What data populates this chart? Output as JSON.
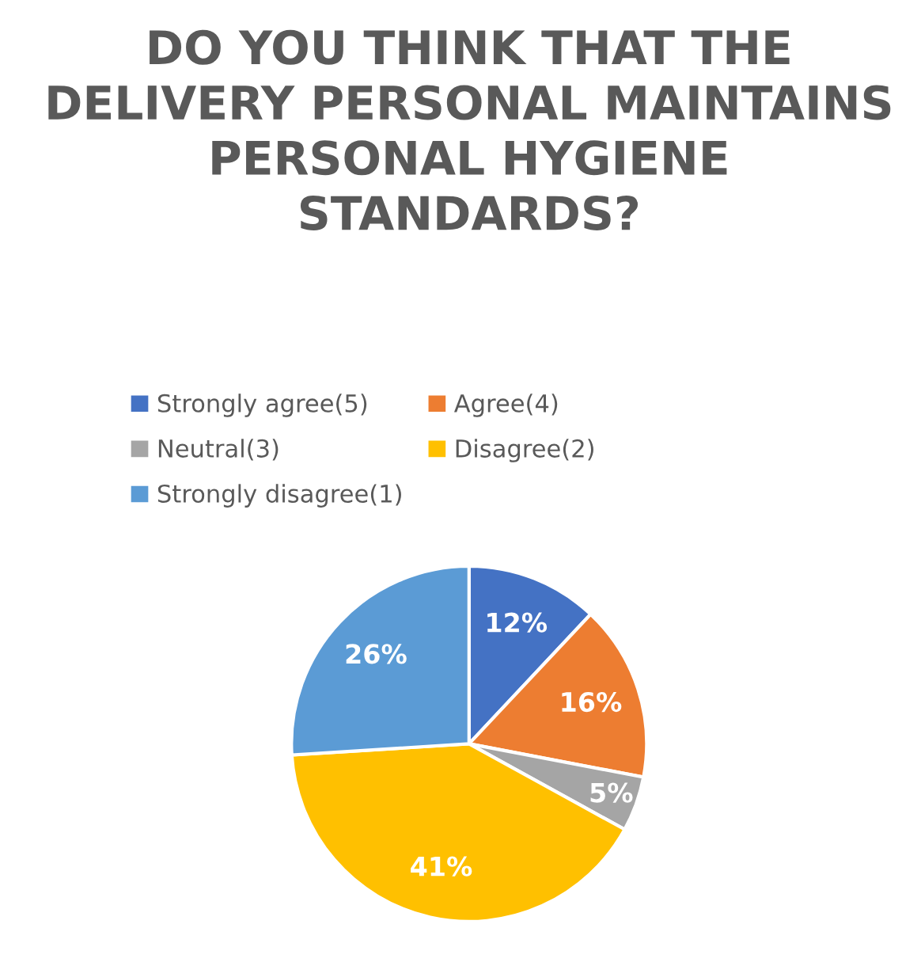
{
  "chart_data": {
    "type": "pie",
    "title": "DO YOU THINK THAT THE DELIVERY PERSONAL MAINTAINS PERSONAL HYGIENE STANDARDS?",
    "categories": [
      "Strongly agree(5)",
      "Agree(4)",
      "Neutral(3)",
      "Disagree(2)",
      "Strongly disagree(1)"
    ],
    "values": [
      12,
      16,
      5,
      41,
      26
    ],
    "colors": [
      "#4472c4",
      "#ed7d31",
      "#a5a5a5",
      "#ffc000",
      "#5b9bd5"
    ],
    "value_labels": [
      "12%",
      "16%",
      "5%",
      "41%",
      "26%"
    ],
    "legend": "top"
  }
}
